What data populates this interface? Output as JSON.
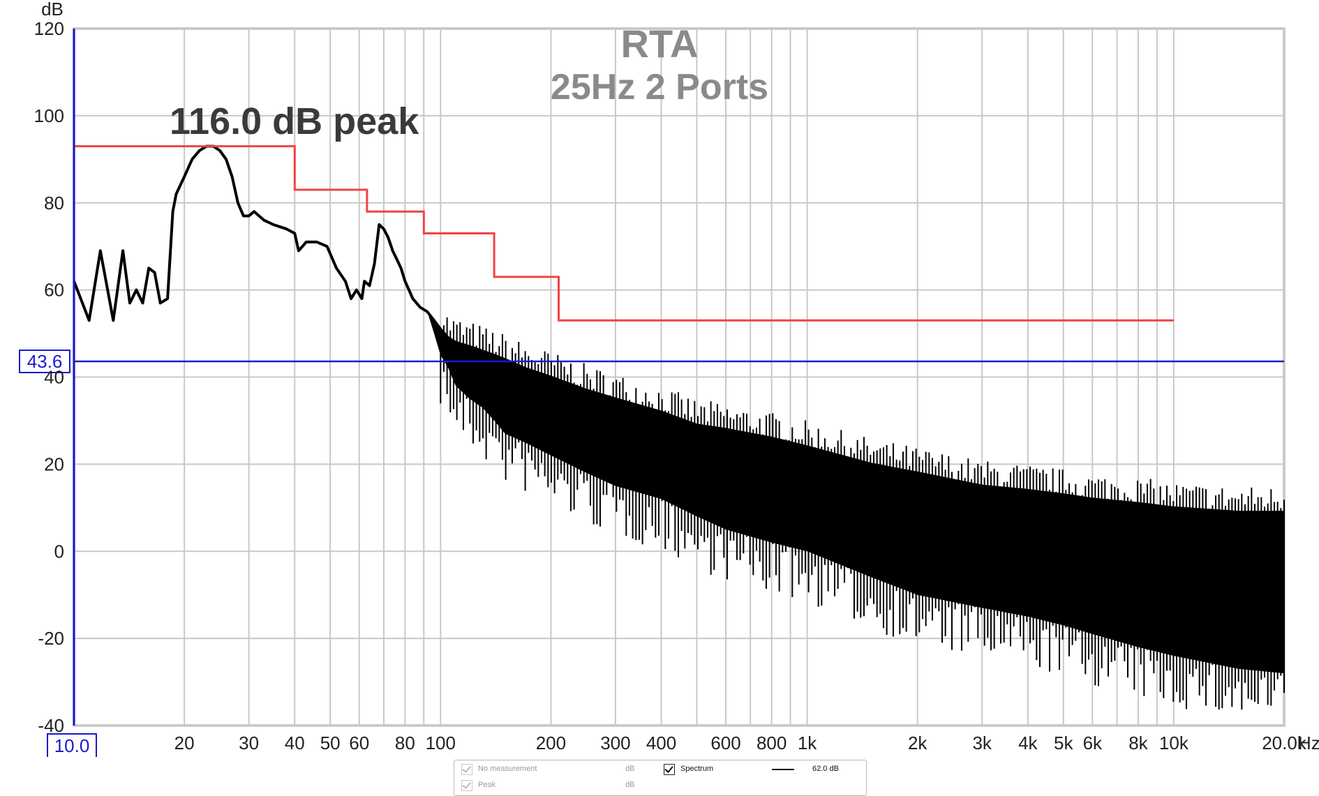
{
  "chart_data": {
    "type": "line",
    "title": "RTA",
    "subtitle": "25Hz 2 Ports",
    "annotation": "116.0 dB peak",
    "ylabel": "dB",
    "xunit": "Hz",
    "xscale": "log",
    "xlim": [
      10,
      20000
    ],
    "ylim": [
      -40,
      120
    ],
    "grid": true,
    "yticks": [
      "120",
      "100",
      "80",
      "60",
      "40",
      "20",
      "0",
      "-20",
      "-40"
    ],
    "xticks": [
      {
        "value": 20,
        "label": "20"
      },
      {
        "value": 30,
        "label": "30"
      },
      {
        "value": 40,
        "label": "40"
      },
      {
        "value": 50,
        "label": "50"
      },
      {
        "value": 60,
        "label": "60"
      },
      {
        "value": 80,
        "label": "80"
      },
      {
        "value": 100,
        "label": "100"
      },
      {
        "value": 200,
        "label": "200"
      },
      {
        "value": 300,
        "label": "300"
      },
      {
        "value": 400,
        "label": "400"
      },
      {
        "value": 600,
        "label": "600"
      },
      {
        "value": 800,
        "label": "800"
      },
      {
        "value": 1000,
        "label": "1k"
      },
      {
        "value": 2000,
        "label": "2k"
      },
      {
        "value": 3000,
        "label": "3k"
      },
      {
        "value": 4000,
        "label": "4k"
      },
      {
        "value": 5000,
        "label": "5k"
      },
      {
        "value": 6000,
        "label": "6k"
      },
      {
        "value": 8000,
        "label": "8k"
      },
      {
        "value": 10000,
        "label": "10k"
      },
      {
        "value": 20000,
        "label": "20.0k"
      }
    ],
    "x_cursor_label": "10.0",
    "y_cursor": {
      "value": 43.6,
      "label": "43.6"
    },
    "colors": {
      "spectrum": "#000000",
      "peak_steps": "#ee4444",
      "cursor": "#1a1acc",
      "grid": "#c8c8c8",
      "title": "#8a8a8a"
    },
    "series": [
      {
        "name": "Spectrum",
        "x": [
          10,
          11,
          11.8,
          12.8,
          13.6,
          14.2,
          14.8,
          15.4,
          16,
          16.6,
          17.2,
          18,
          18.6,
          19,
          20,
          21,
          22,
          23,
          24,
          25,
          26,
          27,
          28,
          29,
          30,
          31,
          33,
          35,
          38,
          40,
          41,
          43,
          46,
          49,
          52,
          55,
          57,
          59,
          61,
          62,
          64,
          66,
          68,
          70,
          72,
          74,
          76,
          78,
          80,
          84,
          88,
          92,
          96,
          100,
          105,
          110,
          120,
          130,
          140,
          150,
          170,
          200,
          250,
          300,
          400,
          500,
          600,
          800,
          1000,
          1500,
          2000,
          3000,
          4000,
          5000,
          6000,
          8000,
          10000,
          15000,
          20000
        ],
        "y": [
          62,
          53,
          69,
          53,
          69,
          57,
          60,
          57,
          65,
          64,
          57,
          58,
          78,
          82,
          86,
          90,
          92,
          93,
          93,
          92,
          90,
          86,
          80,
          77,
          77,
          78,
          76,
          75,
          74,
          73,
          69,
          71,
          71,
          70,
          65,
          62,
          58,
          60,
          58,
          62,
          61,
          66,
          75,
          74,
          72,
          69,
          67,
          65,
          62,
          58,
          56,
          55,
          53,
          51,
          49,
          48,
          47,
          46,
          45,
          44,
          42,
          40,
          37,
          35,
          32,
          29,
          28,
          26,
          24,
          20,
          18,
          15,
          14,
          13,
          12,
          11,
          10,
          9,
          9
        ],
        "y_low": [
          62,
          53,
          69,
          53,
          69,
          57,
          60,
          57,
          65,
          64,
          57,
          58,
          78,
          82,
          86,
          90,
          92,
          93,
          93,
          92,
          90,
          86,
          80,
          77,
          77,
          78,
          76,
          75,
          74,
          73,
          69,
          71,
          71,
          70,
          65,
          62,
          58,
          60,
          58,
          62,
          61,
          66,
          75,
          74,
          72,
          69,
          67,
          65,
          62,
          58,
          56,
          55,
          50,
          45,
          42,
          38,
          35,
          33,
          30,
          27,
          25,
          22,
          18,
          15,
          12,
          8,
          5,
          2,
          0,
          -6,
          -10,
          -13,
          -15,
          -17,
          -19,
          -22,
          -24,
          -27,
          -28
        ]
      },
      {
        "name": "Peak steps",
        "x": [
          10,
          40,
          40,
          63,
          63,
          90,
          90,
          140,
          140,
          210,
          210,
          10000
        ],
        "y": [
          93,
          93,
          83,
          83,
          78,
          78,
          73,
          73,
          63,
          63,
          53,
          53
        ]
      }
    ]
  },
  "legend": {
    "rows": [
      {
        "label": "No measurement",
        "unit": "dB",
        "checked": true,
        "active": false
      },
      {
        "label": "Peak",
        "unit": "dB",
        "checked": true,
        "active": false
      }
    ],
    "spectrum": {
      "label": "Spectrum",
      "value": "62.0 dB",
      "checked": true
    }
  }
}
